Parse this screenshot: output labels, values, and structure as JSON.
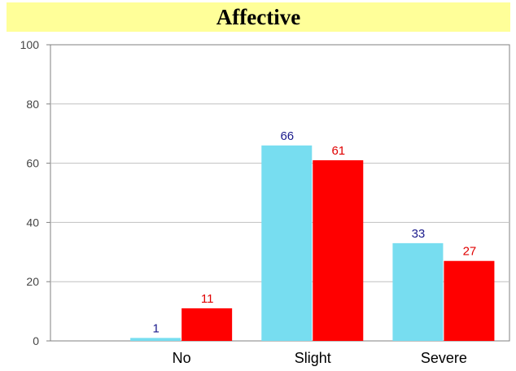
{
  "chart_data": {
    "type": "bar",
    "title": "Affective",
    "categories": [
      "No",
      "Slight",
      "Severe"
    ],
    "series": [
      {
        "values": [
          1,
          66,
          33
        ],
        "color": "#77ddf0",
        "label_color": "#1a1a8c"
      },
      {
        "values": [
          11,
          61,
          27
        ],
        "color": "#ff0000",
        "label_color": "#e00000"
      }
    ],
    "ylim": [
      0,
      100
    ],
    "yticks": [
      0,
      20,
      40,
      60,
      80,
      100
    ],
    "grid": true
  }
}
